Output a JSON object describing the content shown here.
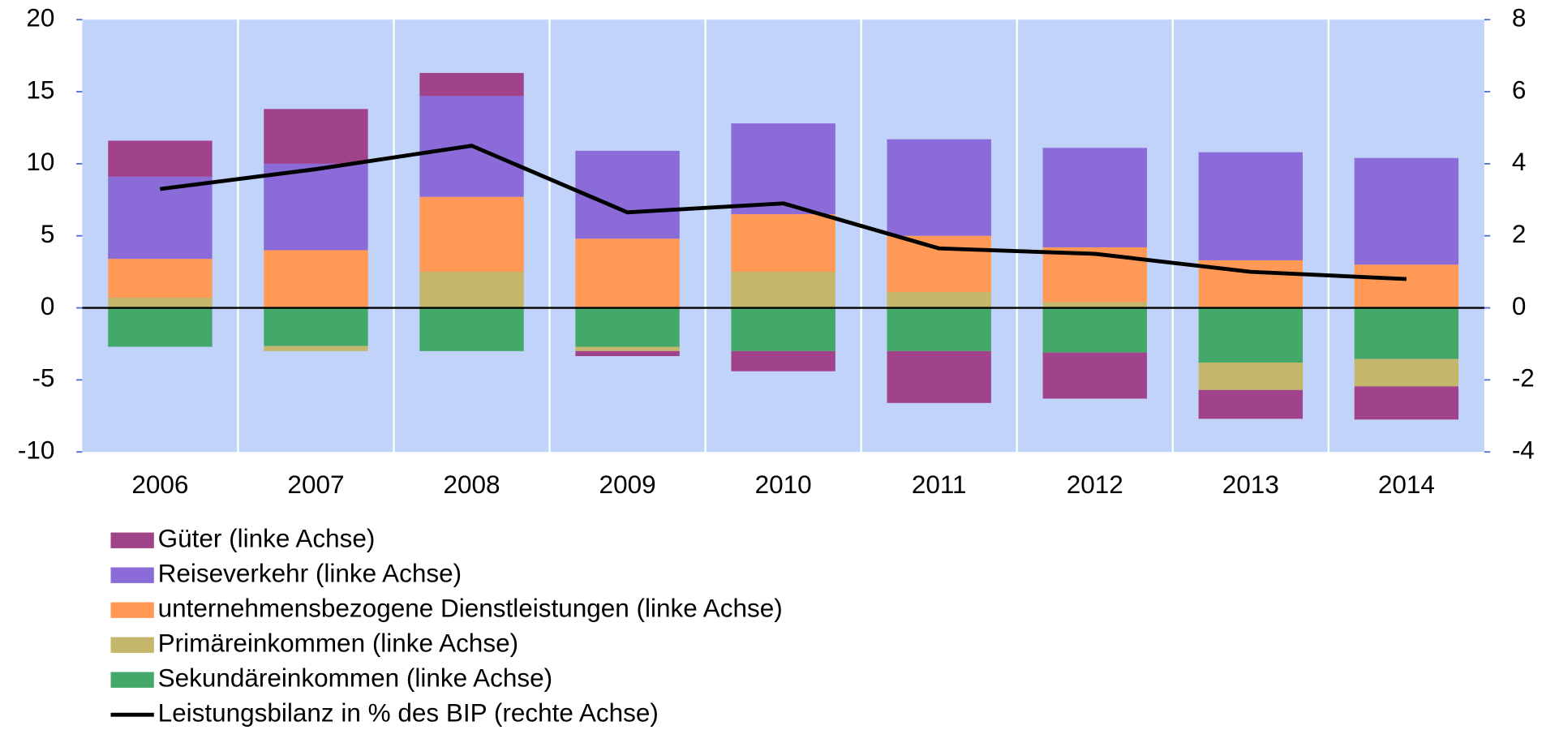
{
  "chart_data": {
    "type": "bar",
    "stacked": true,
    "categories": [
      "2006",
      "2007",
      "2008",
      "2009",
      "2010",
      "2011",
      "2012",
      "2013",
      "2014"
    ],
    "ylim": [
      -10,
      20
    ],
    "yticks": [
      -10,
      -5,
      0,
      5,
      10,
      15,
      20
    ],
    "y2lim": [
      -4,
      8
    ],
    "y2ticks": [
      -4,
      -2,
      0,
      2,
      4,
      6,
      8
    ],
    "series": [
      {
        "name": "Güter (linke Achse)",
        "color": "#a0438a",
        "values": [
          2.5,
          3.8,
          1.6,
          -0.35,
          -1.4,
          -3.6,
          -3.2,
          -2.0,
          -2.3
        ]
      },
      {
        "name": "Reiseverkehr (linke Achse)",
        "color": "#8a6bd8",
        "values": [
          5.7,
          6.0,
          7.0,
          6.1,
          6.3,
          6.7,
          6.9,
          7.5,
          7.4
        ]
      },
      {
        "name": "unternehmensbezogene Dienstleistungen (linke Achse)",
        "color": "#ff9955",
        "values": [
          2.7,
          4.0,
          5.2,
          4.8,
          4.0,
          3.9,
          3.8,
          3.3,
          3.0
        ]
      },
      {
        "name": "Primäreinkommen (linke Achse)",
        "color": "#c4b66a",
        "values": [
          0.7,
          -0.35,
          2.5,
          -0.3,
          2.5,
          1.1,
          0.4,
          -1.9,
          -1.9
        ]
      },
      {
        "name": "Sekundäreinkommen (linke Achse)",
        "color": "#44a86a",
        "values": [
          -2.7,
          -2.65,
          -3.0,
          -2.7,
          -3.0,
          -3.0,
          -3.1,
          -3.8,
          -3.55
        ]
      },
      {
        "name": "Leistungsbilanz in % des BIP (rechte Achse)",
        "color": "#000000",
        "type": "line",
        "axis": "y2",
        "values": [
          3.3,
          3.85,
          4.5,
          2.65,
          2.9,
          1.65,
          1.5,
          1.0,
          0.8
        ]
      }
    ]
  }
}
